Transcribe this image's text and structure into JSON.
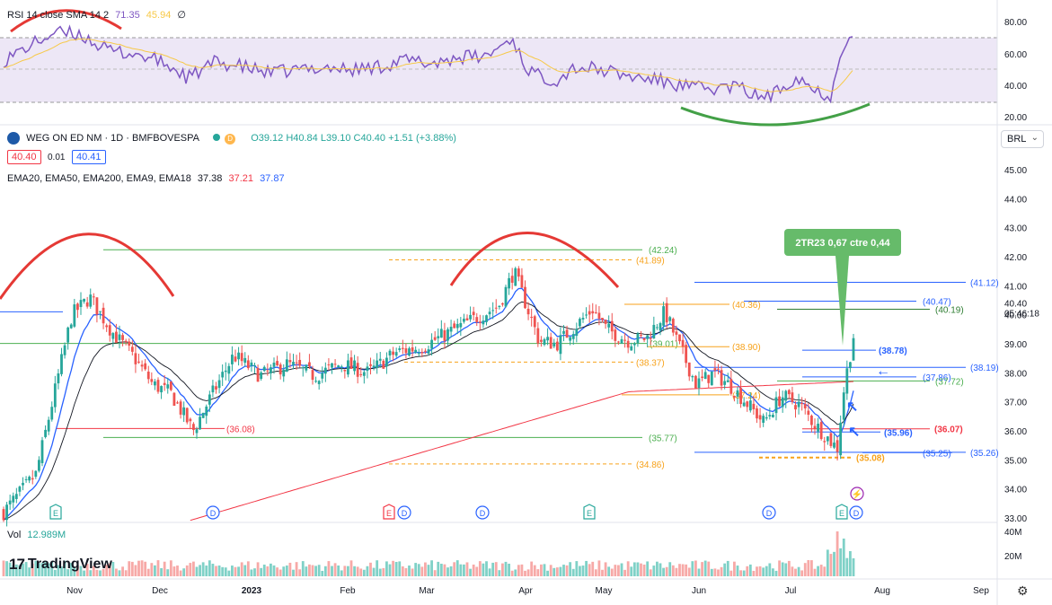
{
  "rsi": {
    "title": "RSI 14 close SMA 14 2",
    "value1": "71.35",
    "value2": "45.94",
    "value3": "∅",
    "axis_ticks": [
      "80.00",
      "60.00",
      "40.00",
      "20.00"
    ]
  },
  "symbol": {
    "name": "WEG ON ED NM · 1D · BMFBOVESPA",
    "ohlc": "O39.12 H40.84 L39.10 C40.40 +1.51 (+3.88%)",
    "bid": "40.40",
    "spread": "0.01",
    "ask": "40.41",
    "currency": "BRL"
  },
  "ema_legend": {
    "label": "EMA20, EMA50, EMA200, EMA9, EMA18",
    "v1": "37.38",
    "v2": "37.21",
    "v3": "37.87"
  },
  "annotation": "2TR23 0,67 ctre 0,44",
  "volume": {
    "label": "Vol",
    "value": "12.989M",
    "ticks": [
      "40M",
      "20M"
    ]
  },
  "x_axis": [
    "Nov",
    "Dec",
    "2023",
    "Feb",
    "Mar",
    "Apr",
    "May",
    "Jun",
    "Jul",
    "Aug",
    "Sep"
  ],
  "logo": "TradingView",
  "icons": {
    "eye": "eye-icon",
    "gear": "gear-icon",
    "chevron": "chevron-down-icon",
    "lightning": "lightning-icon"
  },
  "colors": {
    "up": "#26a69a",
    "down": "#ef5350",
    "rsi": "#7e57c2",
    "ema_blue": "#2962ff",
    "ema_red": "#f23645",
    "ema_dark": "#131722",
    "green_line": "#2e7d32",
    "orange_line": "#f7a21b",
    "arcs": "#e53935",
    "green_arc": "#43a047",
    "annotation_bg": "#66bb6a"
  },
  "chart_data": {
    "type": "candlestick",
    "price_axis": {
      "ticks": [
        "45.00",
        "44.00",
        "43.00",
        "42.00",
        "41.00",
        "40.00",
        "39.00",
        "38.00",
        "37.00",
        "36.00",
        "35.00",
        "34.00",
        "33.00"
      ],
      "range": [
        32.9,
        45.4
      ]
    },
    "levels": [
      {
        "value": "42.24",
        "color": "#4caf50",
        "style": "solid"
      },
      {
        "value": "41.89",
        "color": "#f7a21b",
        "style": "dashed"
      },
      {
        "value": "41.12",
        "color": "#2962ff",
        "style": "solid"
      },
      {
        "value": "40.47",
        "color": "#2962ff",
        "style": "solid"
      },
      {
        "value": "40.36",
        "color": "#f7a21b",
        "style": "solid"
      },
      {
        "value": "40.19",
        "color": "#2e7d32",
        "style": "solid"
      },
      {
        "value": "39.01",
        "color": "#4caf50",
        "style": "solid"
      },
      {
        "value": "38.90",
        "color": "#f7a21b",
        "style": "solid"
      },
      {
        "value": "38.78",
        "color": "#2962ff",
        "style": "solid"
      },
      {
        "value": "38.37",
        "color": "#f7a21b",
        "style": "dashed"
      },
      {
        "value": "38.19",
        "color": "#2962ff",
        "style": "solid"
      },
      {
        "value": "37.86",
        "color": "#2962ff",
        "style": "solid"
      },
      {
        "value": "37.72",
        "color": "#4caf50",
        "style": "solid"
      },
      {
        "value": "37.24",
        "color": "#f7a21b",
        "style": "solid"
      },
      {
        "value": "36.08",
        "color": "#f23645",
        "style": "solid"
      },
      {
        "value": "36.07",
        "color": "#f23645",
        "style": "solid"
      },
      {
        "value": "35.96",
        "color": "#2962ff",
        "style": "solid"
      },
      {
        "value": "35.77",
        "color": "#4caf50",
        "style": "solid"
      },
      {
        "value": "35.26",
        "color": "#2962ff",
        "style": "solid"
      },
      {
        "value": "35.25",
        "color": "#2962ff",
        "style": "solid"
      },
      {
        "value": "35.08",
        "color": "#f7a21b",
        "style": "dashed"
      },
      {
        "value": "34.86",
        "color": "#f7a21b",
        "style": "dashed"
      }
    ],
    "last_price": "40.40",
    "countdown": "05:46:18",
    "events": [
      "E",
      "D",
      "E",
      "D",
      "D",
      "E",
      "D",
      "E",
      "D"
    ]
  }
}
